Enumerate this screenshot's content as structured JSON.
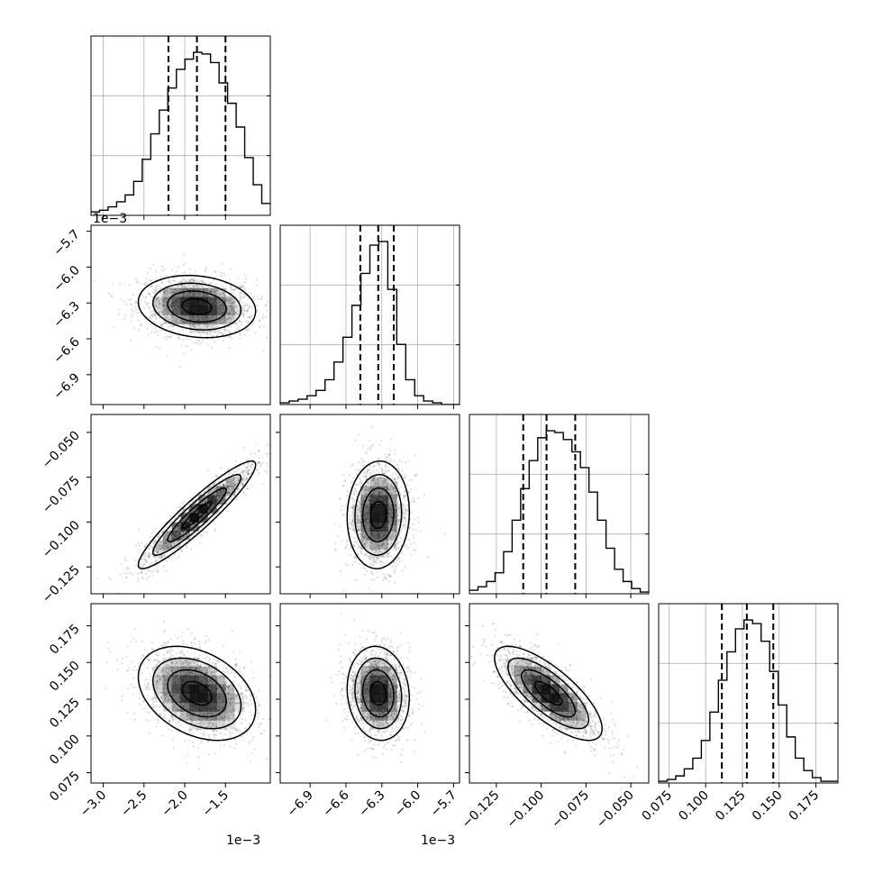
{
  "chart_data": {
    "type": "corner",
    "parameters": [
      {
        "range": [
          -3.15,
          -0.95
        ],
        "ticks": [
          -3.0,
          -2.5,
          -2.0,
          -1.5
        ],
        "tick_labels": [
          "−3.0",
          "−2.5",
          "−2.0",
          "−1.5"
        ],
        "offset_text": "1e−3",
        "mean": -1.85,
        "std": 0.36,
        "quantiles": [
          -2.2,
          -1.85,
          -1.5
        ]
      },
      {
        "range": [
          -7.15,
          -5.65
        ],
        "ticks": [
          -6.9,
          -6.6,
          -6.3,
          -6.0,
          -5.7
        ],
        "tick_labels": [
          "−6.9",
          "−6.6",
          "−6.3",
          "−6.0",
          "−5.7"
        ],
        "offset_text": "1e−3",
        "mean": -6.33,
        "std": 0.13,
        "quantiles": [
          -6.48,
          -6.33,
          -6.2
        ]
      },
      {
        "range": [
          -0.14,
          -0.04
        ],
        "ticks": [
          -0.125,
          -0.1,
          -0.075,
          -0.05
        ],
        "tick_labels": [
          "−0.125",
          "−0.100",
          "−0.075",
          "−0.050"
        ],
        "offset_text": "",
        "mean": -0.096,
        "std": 0.015,
        "quantiles": [
          -0.11,
          -0.097,
          -0.081
        ]
      },
      {
        "range": [
          0.068,
          0.19
        ],
        "ticks": [
          0.075,
          0.1,
          0.125,
          0.15,
          0.175
        ],
        "tick_labels": [
          "0.075",
          "0.100",
          "0.125",
          "0.150",
          "0.175"
        ],
        "offset_text": "",
        "mean": 0.129,
        "std": 0.016,
        "quantiles": [
          0.111,
          0.128,
          0.146
        ]
      }
    ],
    "histograms": [
      [
        2,
        3,
        5,
        8,
        12,
        20,
        33,
        48,
        62,
        75,
        86,
        92,
        96,
        95,
        90,
        78,
        66,
        52,
        34,
        18,
        7
      ],
      [
        1,
        2,
        3,
        5,
        8,
        14,
        24,
        38,
        56,
        74,
        90,
        92,
        65,
        34,
        14,
        5,
        2,
        1,
        0,
        0
      ],
      [
        2,
        4,
        7,
        12,
        24,
        42,
        60,
        76,
        89,
        93,
        92,
        88,
        81,
        72,
        58,
        42,
        26,
        14,
        7,
        3,
        1
      ],
      [
        1,
        2,
        4,
        8,
        14,
        24,
        40,
        58,
        74,
        87,
        92,
        90,
        80,
        63,
        44,
        26,
        14,
        7,
        3,
        1,
        1
      ]
    ],
    "correlations": [
      [
        0,
        0,
        0,
        0
      ],
      [
        -0.15,
        0,
        0,
        0
      ],
      [
        0.93,
        0.05,
        0,
        0
      ],
      [
        -0.35,
        -0.1,
        -0.75,
        0
      ]
    ],
    "contour_levels_sigma": [
      0.5,
      1.0,
      1.5,
      2.0
    ],
    "grid": true
  }
}
